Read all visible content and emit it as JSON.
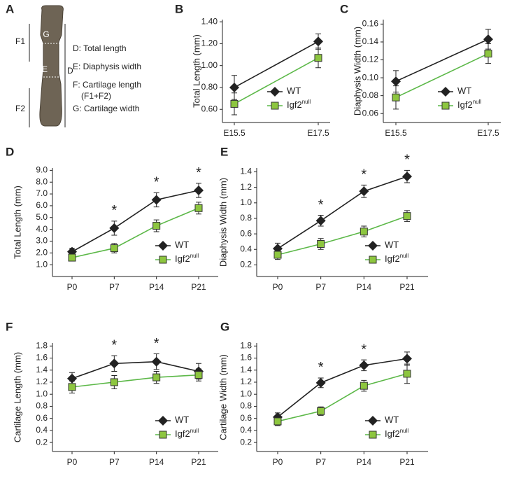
{
  "panel_a": {
    "panel": "A",
    "labels": [
      "F1",
      "F2",
      "D",
      "E",
      "G"
    ],
    "legend": [
      "D: Total length",
      "E: Diaphysis width",
      "F: Cartilage length",
      "(F1+F2)",
      "G: Cartilage width"
    ]
  },
  "chart_data": [
    {
      "type": "line",
      "panel": "B",
      "ylabel": "Total Length (mm)",
      "categories": [
        "E15.5",
        "E17.5"
      ],
      "ylim": [
        0.48,
        1.42
      ],
      "yticks": [
        {
          "value": 0.6,
          "label": "0.60"
        },
        {
          "value": 0.8,
          "label": "0.80"
        },
        {
          "value": 1.0,
          "label": "1.00"
        },
        {
          "value": 1.2,
          "label": "1.20"
        },
        {
          "value": 1.4,
          "label": "1.40"
        }
      ],
      "legend": "lower right",
      "series": [
        {
          "name": "WT",
          "color": "#222222",
          "values": [
            0.8,
            1.22
          ],
          "errors": [
            0.11,
            0.07
          ]
        },
        {
          "name": "Igf2",
          "name_superscript": "null",
          "color": "#5cb848",
          "values": [
            0.65,
            1.07
          ],
          "errors": [
            0.1,
            0.09
          ]
        }
      ]
    },
    {
      "type": "line",
      "panel": "C",
      "ylabel": "Diaphysis Width (mm)",
      "categories": [
        "E15.5",
        "E17.5"
      ],
      "ylim": [
        0.05,
        0.165
      ],
      "yticks": [
        {
          "value": 0.06,
          "label": "0.06"
        },
        {
          "value": 0.08,
          "label": "0.08"
        },
        {
          "value": 0.1,
          "label": "0.10"
        },
        {
          "value": 0.12,
          "label": "0.12"
        },
        {
          "value": 0.14,
          "label": "0.14"
        },
        {
          "value": 0.16,
          "label": "0.16"
        }
      ],
      "legend": "lower right",
      "series": [
        {
          "name": "WT",
          "color": "#222222",
          "values": [
            0.096,
            0.143
          ],
          "errors": [
            0.012,
            0.011
          ]
        },
        {
          "name": "Igf2",
          "name_superscript": "null",
          "color": "#5cb848",
          "values": [
            0.078,
            0.127
          ],
          "errors": [
            0.013,
            0.011
          ]
        }
      ]
    },
    {
      "type": "line",
      "panel": "D",
      "ylabel": "Total Length (mm)",
      "categories": [
        "P0",
        "P7",
        "P14",
        "P21"
      ],
      "ylim": [
        0,
        9.2
      ],
      "yticks": [
        {
          "value": 1,
          "label": "1.0"
        },
        {
          "value": 2,
          "label": "2.0"
        },
        {
          "value": 3,
          "label": "3.0"
        },
        {
          "value": 4,
          "label": "4.0"
        },
        {
          "value": 5,
          "label": "5.0"
        },
        {
          "value": 6,
          "label": "6.0"
        },
        {
          "value": 7,
          "label": "7.0"
        },
        {
          "value": 8,
          "label": "8.0"
        },
        {
          "value": 9,
          "label": "9.0"
        }
      ],
      "legend": "lower right",
      "annotations": [
        {
          "category": "P7",
          "text": "*"
        },
        {
          "category": "P14",
          "text": "*"
        },
        {
          "category": "P21",
          "text": "*"
        }
      ],
      "series": [
        {
          "name": "WT",
          "color": "#222222",
          "values": [
            2.1,
            4.1,
            6.5,
            7.3
          ],
          "errors": [
            0.3,
            0.6,
            0.6,
            0.6
          ]
        },
        {
          "name": "Igf2",
          "name_superscript": "null",
          "color": "#5cb848",
          "values": [
            1.6,
            2.4,
            4.3,
            5.8
          ],
          "errors": [
            0.2,
            0.4,
            0.5,
            0.5
          ]
        }
      ]
    },
    {
      "type": "line",
      "panel": "E",
      "ylabel": "Diaphysis Width (mm)",
      "categories": [
        "P0",
        "P7",
        "P14",
        "P21"
      ],
      "ylim": [
        0.05,
        1.45
      ],
      "yticks": [
        0.2,
        0.4,
        0.6,
        0.8,
        {
          "value": 1,
          "label": "1.0"
        },
        1.2,
        1.4
      ],
      "legend": "lower right",
      "annotations": [
        {
          "category": "P7",
          "text": "*"
        },
        {
          "category": "P14",
          "text": "*"
        },
        {
          "category": "P21",
          "text": "*"
        }
      ],
      "series": [
        {
          "name": "WT",
          "color": "#222222",
          "values": [
            0.41,
            0.77,
            1.15,
            1.34
          ],
          "errors": [
            0.07,
            0.07,
            0.08,
            0.08
          ]
        },
        {
          "name": "Igf2",
          "name_superscript": "null",
          "color": "#5cb848",
          "values": [
            0.33,
            0.47,
            0.63,
            0.83
          ],
          "errors": [
            0.06,
            0.07,
            0.07,
            0.07
          ]
        }
      ]
    },
    {
      "type": "line",
      "panel": "F",
      "ylabel": "Cartilage Length (mm)",
      "categories": [
        "P0",
        "P7",
        "P14",
        "P21"
      ],
      "ylim": [
        0.05,
        1.85
      ],
      "yticks": [
        0.2,
        0.4,
        0.6,
        0.8,
        {
          "value": 1,
          "label": "1.0"
        },
        1.2,
        1.4,
        1.6,
        1.8
      ],
      "legend": "lower right",
      "annotations": [
        {
          "category": "P7",
          "text": "*"
        },
        {
          "category": "P14",
          "text": "*"
        }
      ],
      "series": [
        {
          "name": "WT",
          "color": "#222222",
          "values": [
            1.26,
            1.51,
            1.54,
            1.38
          ],
          "errors": [
            0.1,
            0.13,
            0.13,
            0.13
          ]
        },
        {
          "name": "Igf2",
          "name_superscript": "null",
          "color": "#5cb848",
          "values": [
            1.12,
            1.2,
            1.28,
            1.32
          ],
          "errors": [
            0.1,
            0.11,
            0.1,
            0.1
          ]
        }
      ]
    },
    {
      "type": "line",
      "panel": "G",
      "ylabel": "Cartilage Width (mm)",
      "categories": [
        "P0",
        "P7",
        "P14",
        "P21"
      ],
      "ylim": [
        0.05,
        1.85
      ],
      "yticks": [
        0.2,
        0.4,
        0.6,
        0.8,
        {
          "value": 1,
          "label": "1.0"
        },
        1.2,
        1.4,
        1.6,
        1.8
      ],
      "legend": "lower right",
      "annotations": [
        {
          "category": "P7",
          "text": "*"
        },
        {
          "category": "P14",
          "text": "*"
        }
      ],
      "series": [
        {
          "name": "WT",
          "color": "#222222",
          "values": [
            0.62,
            1.19,
            1.48,
            1.59
          ],
          "errors": [
            0.07,
            0.08,
            0.09,
            0.11
          ]
        },
        {
          "name": "Igf2",
          "name_superscript": "null",
          "color": "#5cb848",
          "values": [
            0.55,
            0.72,
            1.14,
            1.34
          ],
          "errors": [
            0.07,
            0.07,
            0.09,
            0.16
          ]
        }
      ]
    }
  ]
}
